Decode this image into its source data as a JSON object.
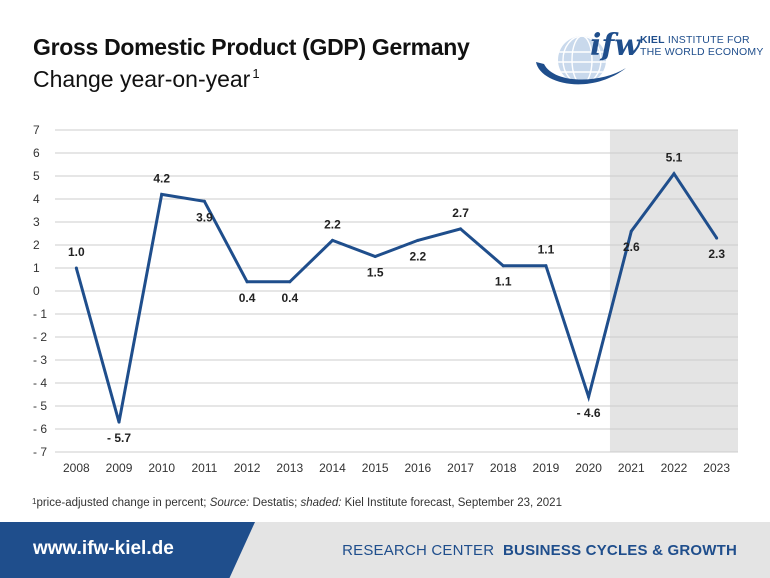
{
  "header": {
    "title": "Gross Domestic Product (GDP) Germany",
    "subtitle": "Change year-on-year",
    "subtitle_footnote_mark": "1"
  },
  "logo": {
    "word": "ifw",
    "line1_bold": "KIEL",
    "line1_rest": "INSTITUTE FOR",
    "line2": "THE WORLD ECONOMY"
  },
  "chart_data": {
    "type": "line",
    "title": "Gross Domestic Product (GDP) Germany",
    "subtitle": "Change year-on-year",
    "categories": [
      "2008",
      "2009",
      "2010",
      "2011",
      "2012",
      "2013",
      "2014",
      "2015",
      "2016",
      "2017",
      "2018",
      "2019",
      "2020",
      "2021",
      "2022",
      "2023"
    ],
    "values": [
      1.0,
      -5.7,
      4.2,
      3.9,
      0.4,
      0.4,
      2.2,
      1.5,
      2.2,
      2.7,
      1.1,
      1.1,
      -4.6,
      2.6,
      5.1,
      2.3
    ],
    "data_labels": [
      "1.0",
      "- 5.7",
      "4.2",
      "3.9",
      "0.4",
      "0.4",
      "2.2",
      "1.5",
      "2.2",
      "2.7",
      "1.1",
      "1.1",
      "- 4.6",
      "2.6",
      "5.1",
      "2.3"
    ],
    "ylim": [
      -7,
      7
    ],
    "y_ticks": [
      "7",
      "6",
      "5",
      "4",
      "3",
      "2",
      "1",
      "0",
      "- 1",
      "- 2",
      "- 3",
      "- 4",
      "- 5",
      "- 6",
      "- 7"
    ],
    "grid": true,
    "shaded_forecast_categories": [
      "2021",
      "2022",
      "2023"
    ],
    "colors": {
      "line": "#1f4e8c",
      "shade": "#e4e4e4",
      "grid": "#cccccc"
    }
  },
  "footnote": {
    "mark": "1",
    "text": "price-adjusted change in percent; ",
    "source_label": "Source:",
    "source_text": " Destatis; ",
    "shaded_label": "shaded:",
    "shaded_text": " Kiel Institute forecast, September 23, 2021"
  },
  "footer": {
    "url": "www.ifw-kiel.de",
    "research_center": "RESEARCH CENTER",
    "research_topic": "BUSINESS CYCLES & GROWTH",
    "colors": {
      "blue": "#1f4e8c",
      "grey": "#e4e4e4"
    }
  }
}
